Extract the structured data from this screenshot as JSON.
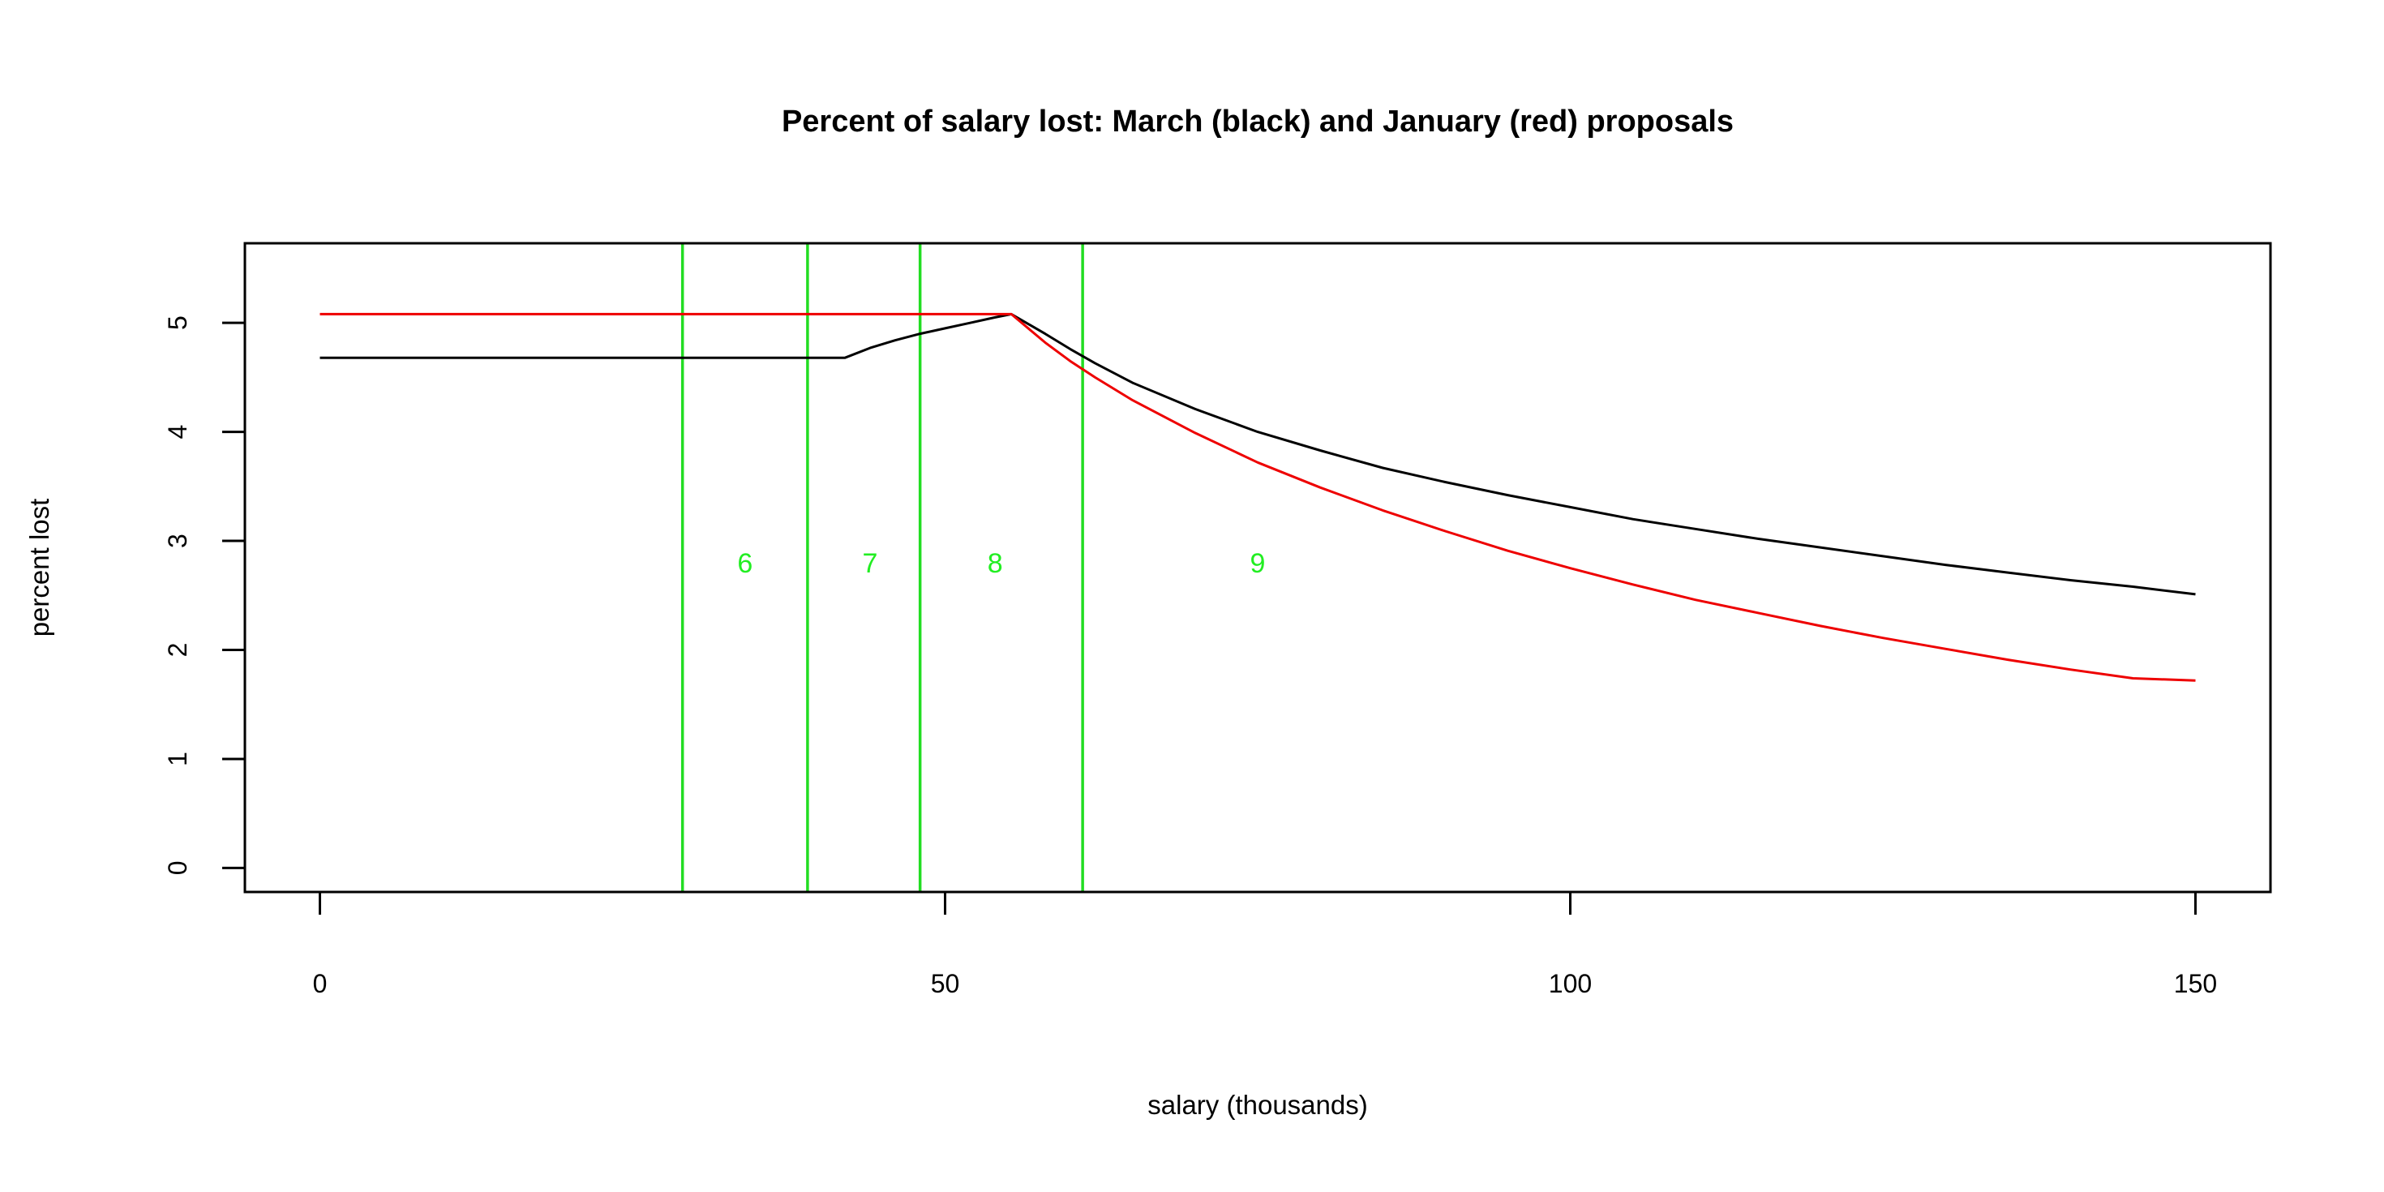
{
  "chart_data": {
    "type": "line",
    "title": "Percent of salary lost: March (black) and January (red) proposals",
    "xlabel": "salary (thousands)",
    "ylabel": "percent lost",
    "xlim": [
      -6,
      156
    ],
    "ylim": [
      -0.22,
      5.73
    ],
    "x_ticks": [
      0,
      50,
      100,
      150
    ],
    "y_ticks": [
      0,
      1,
      2,
      3,
      4,
      5
    ],
    "grid": false,
    "legend": "none",
    "series": [
      {
        "color": "#000000",
        "points": [
          [
            0,
            4.68
          ],
          [
            42,
            4.68
          ],
          [
            44,
            4.77
          ],
          [
            46,
            4.84
          ],
          [
            48,
            4.9
          ],
          [
            50,
            4.95
          ],
          [
            52,
            5.0
          ],
          [
            54,
            5.05
          ],
          [
            55.3,
            5.08
          ],
          [
            58,
            4.9
          ],
          [
            60,
            4.76
          ],
          [
            62,
            4.63
          ],
          [
            65,
            4.45
          ],
          [
            70,
            4.21
          ],
          [
            75,
            4.0
          ],
          [
            80,
            3.83
          ],
          [
            85,
            3.67
          ],
          [
            90,
            3.54
          ],
          [
            95,
            3.42
          ],
          [
            100,
            3.31
          ],
          [
            105,
            3.2
          ],
          [
            110,
            3.11
          ],
          [
            115,
            3.02
          ],
          [
            120,
            2.94
          ],
          [
            125,
            2.86
          ],
          [
            130,
            2.78
          ],
          [
            135,
            2.71
          ],
          [
            140,
            2.64
          ],
          [
            145,
            2.58
          ],
          [
            150,
            2.51
          ]
        ]
      },
      {
        "color": "#ee0000",
        "points": [
          [
            0,
            5.08
          ],
          [
            55.3,
            5.08
          ],
          [
            58,
            4.82
          ],
          [
            60,
            4.65
          ],
          [
            62,
            4.5
          ],
          [
            65,
            4.29
          ],
          [
            70,
            3.99
          ],
          [
            75,
            3.72
          ],
          [
            80,
            3.49
          ],
          [
            85,
            3.28
          ],
          [
            90,
            3.09
          ],
          [
            95,
            2.91
          ],
          [
            100,
            2.75
          ],
          [
            105,
            2.6
          ],
          [
            110,
            2.46
          ],
          [
            115,
            2.34
          ],
          [
            120,
            2.22
          ],
          [
            125,
            2.11
          ],
          [
            130,
            2.01
          ],
          [
            135,
            1.91
          ],
          [
            140,
            1.82
          ],
          [
            145,
            1.74
          ],
          [
            150,
            1.72
          ]
        ]
      }
    ],
    "vertical_lines": {
      "color": "#22dd22",
      "x": [
        29,
        39,
        48,
        61
      ]
    },
    "zone_labels": {
      "color": "#22ee22",
      "y": 2.8,
      "items": [
        {
          "x": 34,
          "text": "6"
        },
        {
          "x": 44,
          "text": "7"
        },
        {
          "x": 54,
          "text": "8"
        },
        {
          "x": 75,
          "text": "9"
        }
      ]
    }
  }
}
